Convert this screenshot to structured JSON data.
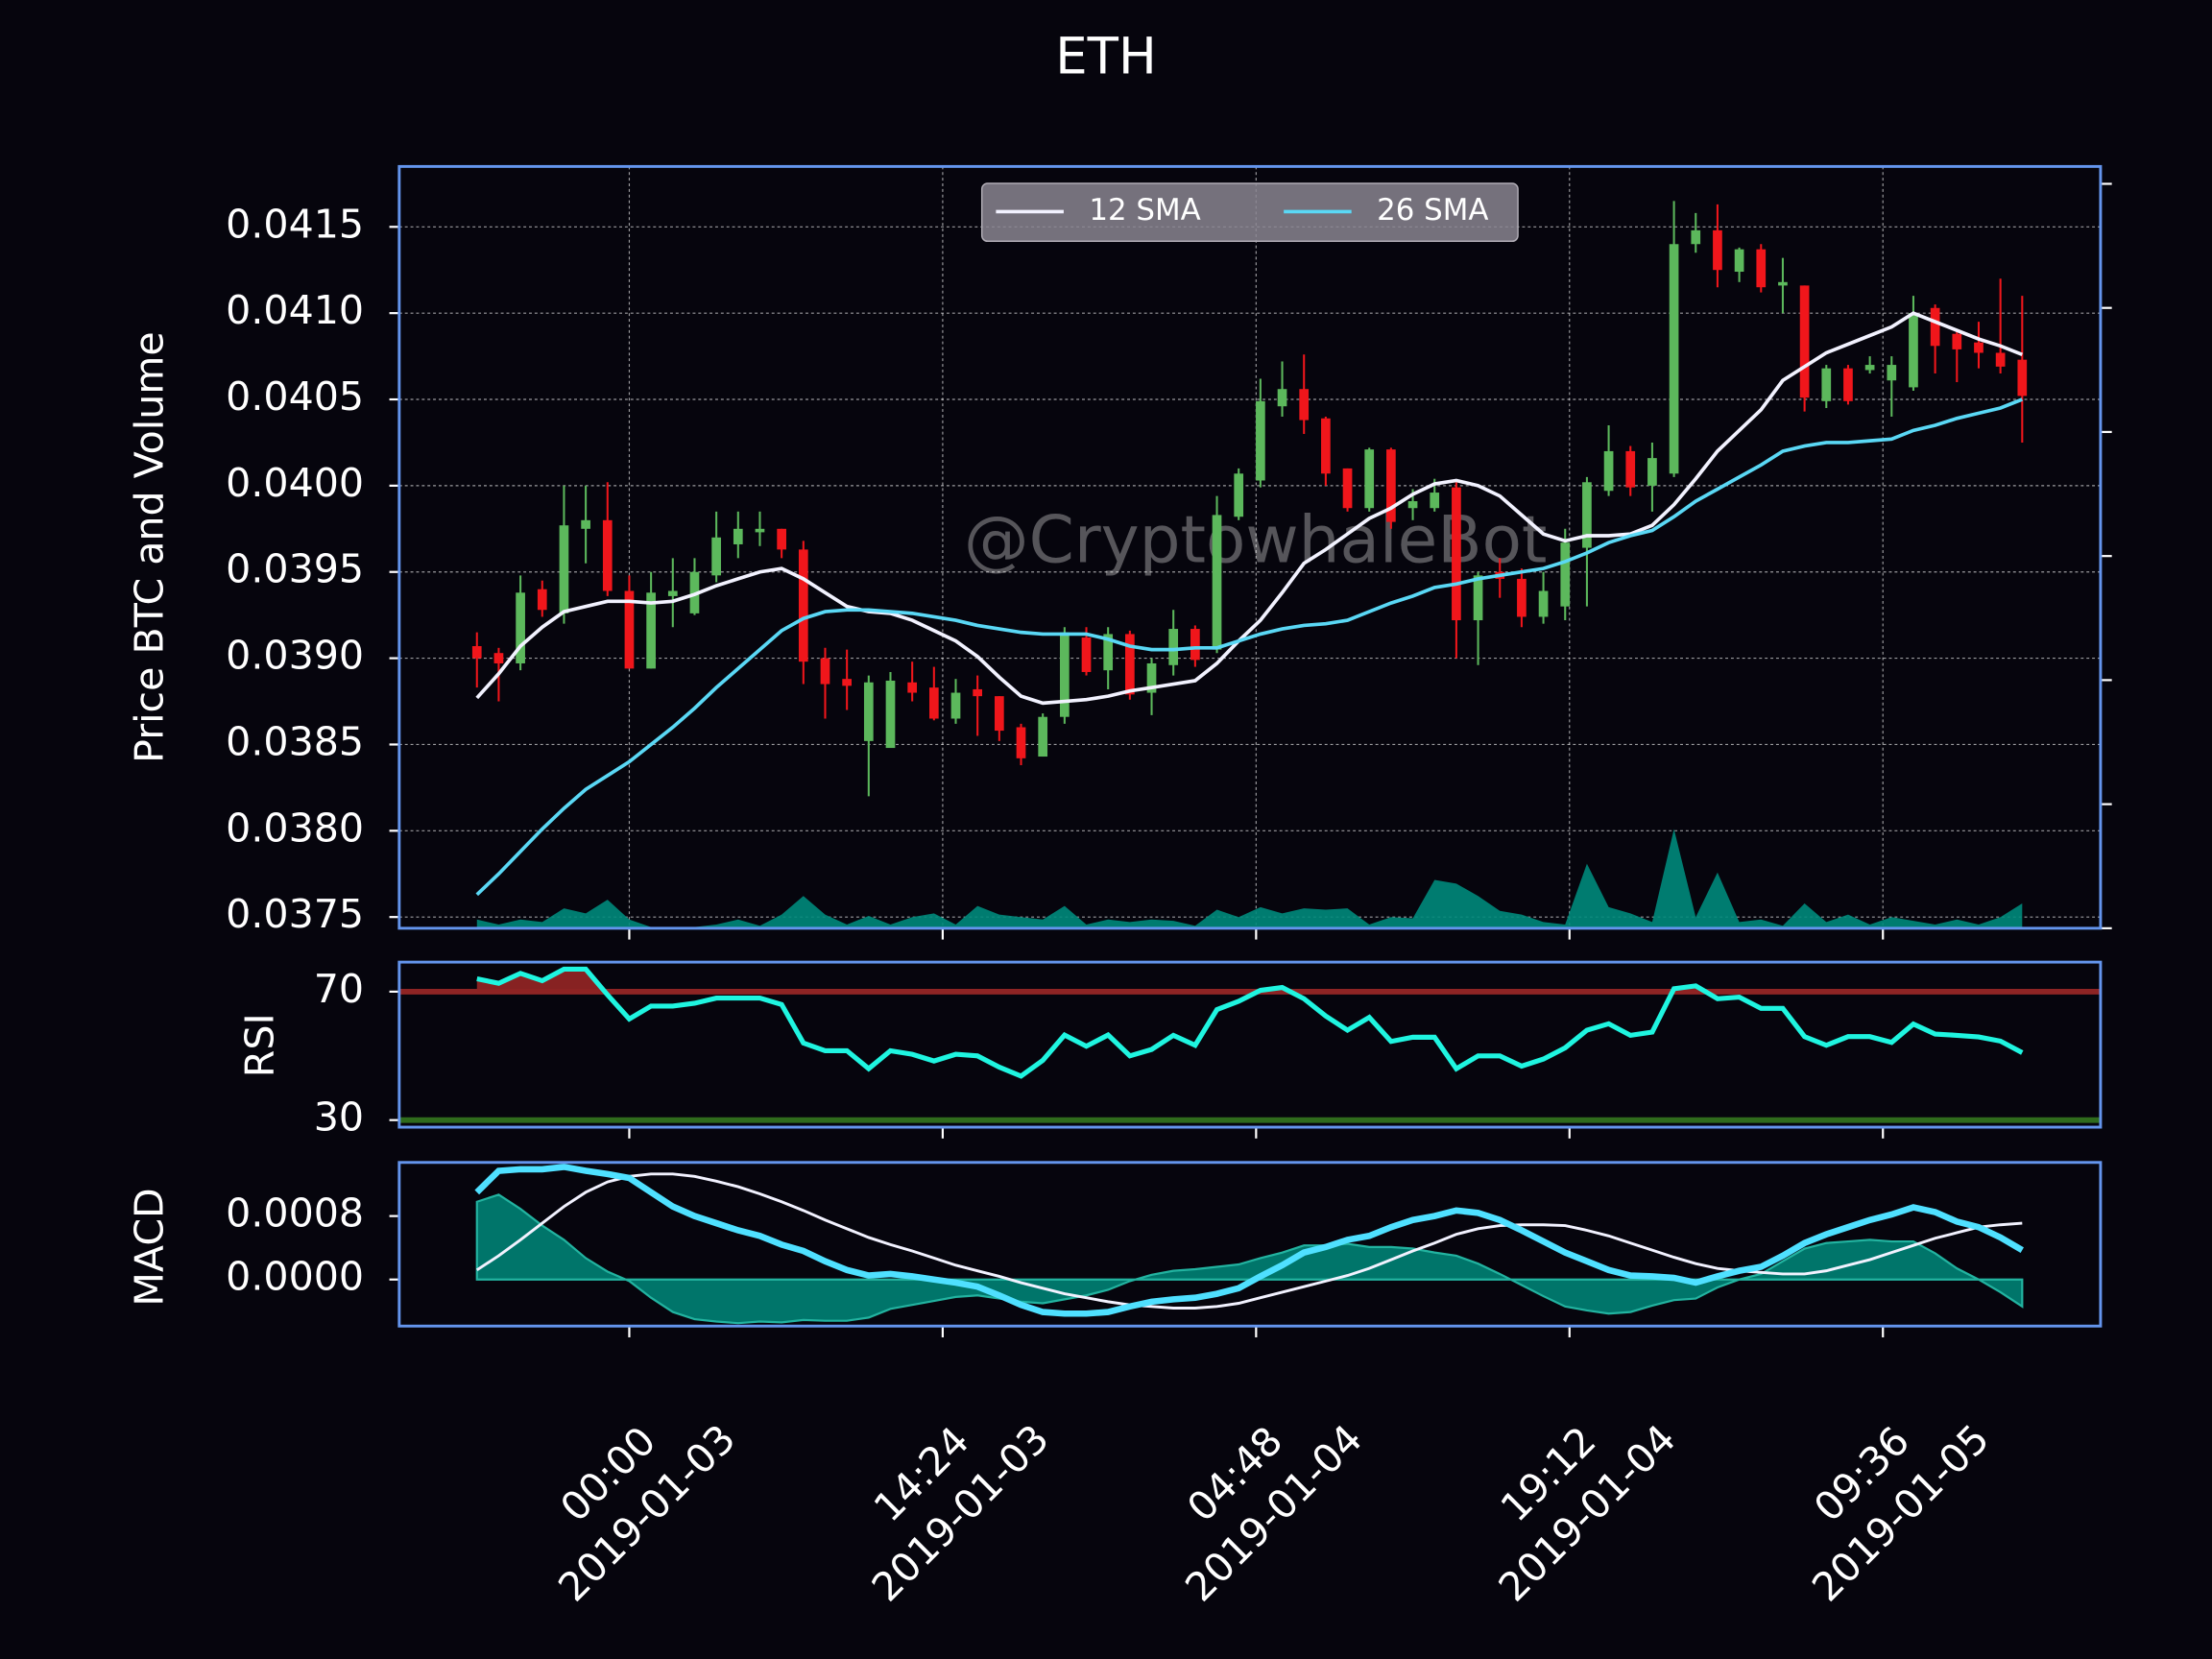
{
  "chart_data": [
    {
      "type": "candlestick",
      "title": "ETH",
      "ylabel": "Price BTC and Volume",
      "watermark": "@CryptowhaleBot",
      "xlim": [
        -3.57,
        74.6
      ],
      "xticks": [
        {
          "value": 7,
          "label": "00:00",
          "date": "2019-01-03"
        },
        {
          "value": 21.4,
          "label": "14:24",
          "date": "2019-01-03"
        },
        {
          "value": 35.8,
          "label": "04:48",
          "date": "2019-01-04"
        },
        {
          "value": 50.2,
          "label": "19:12",
          "date": "2019-01-04"
        },
        {
          "value": 64.6,
          "label": "09:36",
          "date": "2019-01-05"
        }
      ],
      "ylim": [
        0.037435,
        0.04185
      ],
      "yticks": [
        0.0375,
        {
          "value": 0.038,
          "label": "0.0380"
        },
        0.0385,
        {
          "value": 0.039,
          "label": "0.0390"
        },
        0.0395,
        {
          "value": 0.04,
          "label": "0.0400"
        },
        0.0405,
        {
          "value": 0.041,
          "label": "0.0410"
        },
        0.0415
      ],
      "y2lim": [
        0,
        6.14
      ],
      "y2ticks": [
        0,
        1,
        2,
        3,
        4,
        5,
        6
      ],
      "grid": true,
      "legend": "upper center",
      "up_color": "#5cb85c",
      "down_color": "#f0161b",
      "open": [
        0.03907,
        0.03903,
        0.03897,
        0.0394,
        0.03926,
        0.03975,
        0.0398,
        0.03939,
        0.03894,
        0.03936,
        0.03926,
        0.03948,
        0.03966,
        0.03973,
        0.03975,
        0.03963,
        0.039,
        0.03888,
        0.03852,
        0.03848,
        0.03886,
        0.03883,
        0.03865,
        0.03882,
        0.03878,
        0.0386,
        0.03843,
        0.03866,
        0.03912,
        0.03893,
        0.03914,
        0.0388,
        0.03896,
        0.03917,
        0.03905,
        0.03982,
        0.04003,
        0.04046,
        0.04056,
        0.04039,
        0.0401,
        0.03987,
        0.04021,
        0.03987,
        0.03987,
        0.03999,
        0.03922,
        0.0395,
        0.03946,
        0.03924,
        0.0393,
        0.03964,
        0.03997,
        0.0402,
        0.04,
        0.04007,
        0.0414,
        0.04148,
        0.04124,
        0.04137,
        0.04116,
        0.04116,
        0.04049,
        0.04068,
        0.04067,
        0.04061,
        0.04057,
        0.04103,
        0.04088,
        0.04083,
        0.04077,
        0.04073
      ],
      "high": [
        0.03915,
        0.03906,
        0.03948,
        0.03945,
        0.04,
        0.04,
        0.04002,
        0.03948,
        0.0395,
        0.03958,
        0.03958,
        0.03985,
        0.03985,
        0.03985,
        0.03975,
        0.03968,
        0.03906,
        0.03905,
        0.0389,
        0.03892,
        0.03898,
        0.03895,
        0.03888,
        0.0389,
        0.03878,
        0.03862,
        0.03868,
        0.03918,
        0.03918,
        0.03918,
        0.03916,
        0.039,
        0.03928,
        0.03919,
        0.03994,
        0.0401,
        0.04062,
        0.04072,
        0.04076,
        0.0404,
        0.0401,
        0.04022,
        0.04022,
        0.03998,
        0.04004,
        0.04002,
        0.0395,
        0.03958,
        0.03952,
        0.0395,
        0.03975,
        0.04005,
        0.04035,
        0.04023,
        0.04025,
        0.04165,
        0.04158,
        0.04163,
        0.04138,
        0.0414,
        0.04132,
        0.04116,
        0.0407,
        0.0407,
        0.04075,
        0.04075,
        0.0411,
        0.04105,
        0.0409,
        0.04095,
        0.0412,
        0.0411
      ],
      "low": [
        0.03883,
        0.03875,
        0.03893,
        0.03924,
        0.0392,
        0.03955,
        0.03936,
        0.03894,
        0.03894,
        0.03918,
        0.03925,
        0.03944,
        0.03958,
        0.03965,
        0.03958,
        0.03885,
        0.03865,
        0.0387,
        0.0382,
        0.03848,
        0.03875,
        0.03864,
        0.03862,
        0.03855,
        0.03852,
        0.03838,
        0.03843,
        0.03862,
        0.0389,
        0.03882,
        0.03876,
        0.03867,
        0.0389,
        0.03895,
        0.03903,
        0.0398,
        0.03999,
        0.0404,
        0.0403,
        0.04,
        0.03985,
        0.03985,
        0.03975,
        0.0398,
        0.03985,
        0.039,
        0.03896,
        0.03935,
        0.03918,
        0.0392,
        0.03922,
        0.0393,
        0.03994,
        0.03994,
        0.03985,
        0.04005,
        0.04135,
        0.04115,
        0.04118,
        0.04112,
        0.041,
        0.04043,
        0.04045,
        0.04047,
        0.04065,
        0.0404,
        0.04055,
        0.04065,
        0.0406,
        0.04068,
        0.04065,
        0.04025
      ],
      "close": [
        0.039,
        0.03897,
        0.03938,
        0.03928,
        0.03977,
        0.0398,
        0.03939,
        0.03894,
        0.03938,
        0.03939,
        0.0395,
        0.0397,
        0.03975,
        0.03975,
        0.03963,
        0.03898,
        0.03885,
        0.03884,
        0.03886,
        0.03887,
        0.0388,
        0.03865,
        0.0388,
        0.03878,
        0.03858,
        0.03842,
        0.03866,
        0.03915,
        0.03892,
        0.03914,
        0.03879,
        0.03897,
        0.03917,
        0.03899,
        0.03983,
        0.04007,
        0.04049,
        0.04056,
        0.04038,
        0.04007,
        0.03987,
        0.04021,
        0.03979,
        0.03991,
        0.03996,
        0.03922,
        0.03948,
        0.03946,
        0.03924,
        0.03939,
        0.03967,
        0.04002,
        0.0402,
        0.03999,
        0.04016,
        0.0414,
        0.04148,
        0.04125,
        0.04137,
        0.04115,
        0.04118,
        0.04051,
        0.04068,
        0.04049,
        0.0407,
        0.0407,
        0.041,
        0.04081,
        0.04079,
        0.04077,
        0.04069,
        0.04052
      ],
      "series": [
        {
          "name": "12 SMA",
          "color": "#f2f2ff",
          "values": [
            0.03877,
            0.03891,
            0.03907,
            0.03918,
            0.03927,
            0.0393,
            0.03933,
            0.03933,
            0.03932,
            0.03933,
            0.03937,
            0.03942,
            0.03946,
            0.0395,
            0.03952,
            0.03946,
            0.03938,
            0.0393,
            0.03927,
            0.03926,
            0.03922,
            0.03916,
            0.0391,
            0.03901,
            0.03889,
            0.03878,
            0.03874,
            0.03875,
            0.03876,
            0.03878,
            0.03881,
            0.03883,
            0.03885,
            0.03887,
            0.03897,
            0.0391,
            0.03922,
            0.03938,
            0.03955,
            0.03963,
            0.03972,
            0.03981,
            0.03987,
            0.03995,
            0.04001,
            0.04003,
            0.04,
            0.03994,
            0.03983,
            0.03972,
            0.03968,
            0.03971,
            0.03971,
            0.03972,
            0.03977,
            0.03989,
            0.04004,
            0.0402,
            0.04032,
            0.04044,
            0.04061,
            0.04069,
            0.04077,
            0.04082,
            0.04087,
            0.04092,
            0.041,
            0.04095,
            0.0409,
            0.04085,
            0.04081,
            0.04076
          ]
        },
        {
          "name": "26 SMA",
          "color": "#5ad8f5",
          "values": [
            0.03763,
            0.03775,
            0.03788,
            0.03801,
            0.03813,
            0.03824,
            0.03832,
            0.0384,
            0.0385,
            0.0386,
            0.03871,
            0.03883,
            0.03894,
            0.03905,
            0.03916,
            0.03923,
            0.03927,
            0.03928,
            0.03928,
            0.03927,
            0.03926,
            0.03924,
            0.03922,
            0.03919,
            0.03917,
            0.03915,
            0.03914,
            0.03914,
            0.03914,
            0.03911,
            0.03907,
            0.03905,
            0.03905,
            0.03906,
            0.03906,
            0.0391,
            0.03914,
            0.03917,
            0.03919,
            0.0392,
            0.03922,
            0.03927,
            0.03932,
            0.03936,
            0.03941,
            0.03943,
            0.03946,
            0.03948,
            0.0395,
            0.03952,
            0.03956,
            0.03961,
            0.03967,
            0.03971,
            0.03974,
            0.03982,
            0.03991,
            0.03998,
            0.04005,
            0.04012,
            0.0402,
            0.04023,
            0.04025,
            0.04025,
            0.04026,
            0.04027,
            0.04032,
            0.04035,
            0.04039,
            0.04042,
            0.04045,
            0.0405
          ]
        },
        {
          "axis": "y2",
          "color": "#00897b",
          "values": [
            0.07,
            0.03,
            0.07,
            0.05,
            0.16,
            0.12,
            0.23,
            0.07,
            0.01,
            0.01,
            0.01,
            0.03,
            0.07,
            0.02,
            0.11,
            0.26,
            0.11,
            0.03,
            0.1,
            0.03,
            0.09,
            0.12,
            0.03,
            0.18,
            0.11,
            0.09,
            0.07,
            0.18,
            0.03,
            0.07,
            0.05,
            0.07,
            0.06,
            0.02,
            0.15,
            0.09,
            0.17,
            0.12,
            0.16,
            0.15,
            0.16,
            0.03,
            0.09,
            0.08,
            0.39,
            0.36,
            0.26,
            0.14,
            0.11,
            0.05,
            0.03,
            0.52,
            0.17,
            0.12,
            0.05,
            0.8,
            0.09,
            0.45,
            0.05,
            0.07,
            0.02,
            0.2,
            0.05,
            0.11,
            0.03,
            0.09,
            0.06,
            0.03,
            0.07,
            0.03,
            0.09,
            0.2
          ]
        }
      ]
    },
    {
      "type": "line",
      "ylabel": "RSI",
      "ylim": [
        27.8,
        79.2
      ],
      "yticks": [
        30,
        70
      ],
      "tick_line_colors": [
        "#2f6b1c",
        "#8e2424"
      ],
      "fill_color": "#8e2424",
      "series": [
        {
          "color": "#1ff5e0",
          "values": [
            74,
            72.6,
            75.7,
            73.4,
            77,
            77,
            69,
            61.5,
            65.5,
            65.5,
            66.4,
            68,
            68,
            68,
            66,
            54,
            51.6,
            51.6,
            46,
            51.6,
            50.5,
            48.4,
            50.5,
            50,
            46.5,
            43.7,
            48.6,
            56.5,
            53,
            56.5,
            50,
            52,
            56.4,
            53.3,
            64.4,
            67,
            70.4,
            71.3,
            67.8,
            62.4,
            58,
            62,
            54.5,
            55.8,
            55.8,
            46,
            50,
            50,
            46.8,
            49,
            52.5,
            58,
            60,
            56.4,
            57.4,
            70.9,
            71.8,
            67.8,
            68.3,
            64.8,
            64.8,
            56,
            53.3,
            56,
            56,
            54.2,
            59.9,
            56.8,
            56.4,
            55.9,
            54.6,
            51
          ]
        }
      ]
    },
    {
      "type": "line",
      "ylabel": "MACD",
      "ylim": [
        -0.000587,
        0.001476
      ],
      "yticks": [
        {
          "value": 0,
          "label": "0.0000"
        },
        0.0008
      ],
      "series": [
        {
          "kind": "area",
          "color": "#00897b",
          "values": [
            0.00098,
            0.00107,
            0.00089,
            0.00068,
            0.0005,
            0.00027,
            0.0001,
            -2e-05,
            -0.00023,
            -0.00041,
            -0.0005,
            -0.00053,
            -0.00055,
            -0.00053,
            -0.00054,
            -0.00051,
            -0.00052,
            -0.00052,
            -0.00048,
            -0.00037,
            -0.00032,
            -0.00027,
            -0.00022,
            -0.0002,
            -0.00024,
            -0.00028,
            -0.0003,
            -0.00025,
            -0.0002,
            -0.00013,
            -2e-05,
            6e-05,
            0.00011,
            0.00013,
            0.00016,
            0.00019,
            0.00027,
            0.00034,
            0.00043,
            0.00043,
            0.00045,
            0.00041,
            0.00041,
            0.00039,
            0.00034,
            0.0003,
            0.0002,
            7e-05,
            -7e-05,
            -0.00021,
            -0.00034,
            -0.00039,
            -0.00043,
            -0.00041,
            -0.00033,
            -0.00026,
            -0.00024,
            -0.0001,
            0,
            7e-05,
            0.00023,
            0.00039,
            0.00046,
            0.00048,
            0.0005,
            0.00048,
            0.00048,
            0.00033,
            0.00014,
            0,
            -0.00016,
            -0.00034
          ]
        },
        {
          "color": "#f2f2ff",
          "width": 2,
          "values": [
            0.00012,
            0.0003,
            0.0005,
            0.00071,
            0.00092,
            0.0011,
            0.00123,
            0.0013,
            0.00133,
            0.00133,
            0.0013,
            0.00124,
            0.00117,
            0.00108,
            0.00098,
            0.00087,
            0.00075,
            0.00064,
            0.00053,
            0.00044,
            0.00036,
            0.00027,
            0.00018,
            0.00011,
            4e-05,
            -4e-05,
            -0.00011,
            -0.00018,
            -0.00023,
            -0.00028,
            -0.00032,
            -0.00034,
            -0.00036,
            -0.00036,
            -0.00034,
            -0.0003,
            -0.00023,
            -0.00016,
            -9e-05,
            -2e-05,
            5e-05,
            0.00014,
            0.00025,
            0.00036,
            0.00046,
            0.00057,
            0.00064,
            0.00068,
            0.00069,
            0.00069,
            0.00068,
            0.00062,
            0.00055,
            0.00046,
            0.00037,
            0.00028,
            0.0002,
            0.00014,
            0.00011,
            9e-05,
            7e-05,
            7e-05,
            0.00011,
            0.00018,
            0.00025,
            0.00034,
            0.00043,
            0.00052,
            0.00059,
            0.00066,
            0.00069,
            0.00071
          ]
        },
        {
          "color": "#4fe0ff",
          "width": 4.5,
          "values": [
            0.0011,
            0.00137,
            0.00139,
            0.00139,
            0.00142,
            0.00137,
            0.00133,
            0.00128,
            0.0011,
            0.00092,
            0.0008,
            0.00071,
            0.00062,
            0.00055,
            0.00044,
            0.00036,
            0.00023,
            0.00012,
            5e-05,
            7e-05,
            4e-05,
            0,
            -4e-05,
            -9e-05,
            -0.0002,
            -0.00032,
            -0.00041,
            -0.00043,
            -0.00043,
            -0.00041,
            -0.00034,
            -0.00028,
            -0.00025,
            -0.00023,
            -0.00018,
            -0.00011,
            4e-05,
            0.00018,
            0.00034,
            0.00041,
            0.0005,
            0.00055,
            0.00066,
            0.00075,
            0.0008,
            0.00087,
            0.00084,
            0.00075,
            0.00062,
            0.00048,
            0.00034,
            0.00023,
            0.00012,
            5e-05,
            4e-05,
            2e-05,
            -4e-05,
            4e-05,
            0.00011,
            0.00016,
            0.0003,
            0.00046,
            0.00057,
            0.00066,
            0.00075,
            0.00082,
            0.00091,
            0.00085,
            0.00073,
            0.00066,
            0.00053,
            0.00037
          ]
        }
      ]
    }
  ]
}
